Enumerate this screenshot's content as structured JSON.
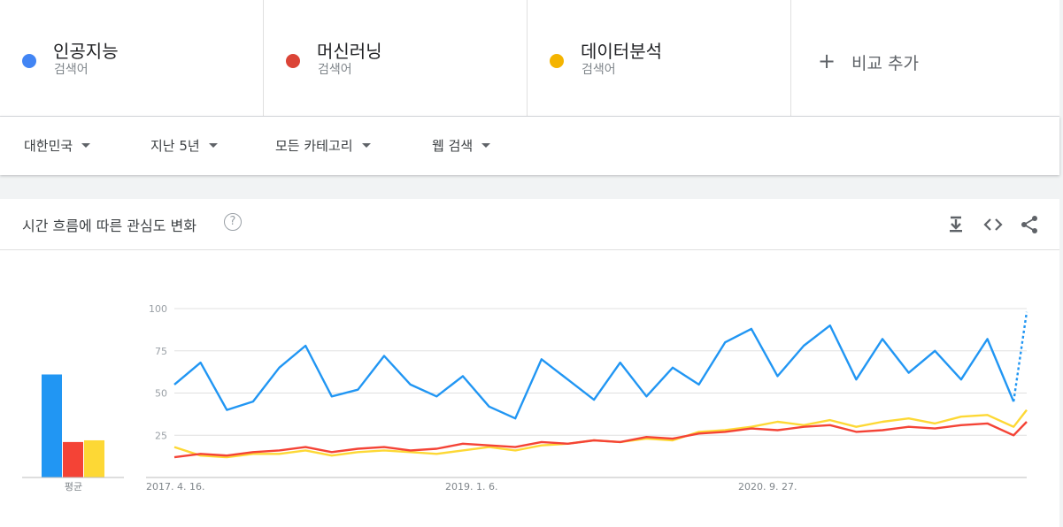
{
  "terms": [
    {
      "name": "인공지능",
      "sub": "검색어",
      "color": "#4285f4"
    },
    {
      "name": "머신러닝",
      "sub": "검색어",
      "color": "#db4437"
    },
    {
      "name": "데이터분석",
      "sub": "검색어",
      "color": "#f4b400"
    }
  ],
  "add_term": {
    "plus": "+",
    "label": "비교 추가"
  },
  "filters": {
    "region": "대한민국",
    "period": "지난 5년",
    "category": "모든 카테고리",
    "search_type": "웹 검색"
  },
  "card": {
    "title": "시간 흐름에 따른 관심도 변화",
    "help": "?",
    "download_icon": "download-icon",
    "embed_icon": "embed-icon",
    "share_icon": "share-icon"
  },
  "chart_data": {
    "type": "line",
    "ylim": [
      0,
      100
    ],
    "yticks": [
      100,
      75,
      50,
      25
    ],
    "grid": true,
    "x_labels": [
      "2017. 4. 16.",
      "2019. 1. 6.",
      "2020. 9. 27."
    ],
    "x": [
      "2017-04-16",
      "2017-06-11",
      "2017-08-06",
      "2017-10-01",
      "2017-11-26",
      "2018-01-21",
      "2018-03-18",
      "2018-05-13",
      "2018-07-08",
      "2018-09-02",
      "2018-10-28",
      "2018-12-23",
      "2019-02-17",
      "2019-04-14",
      "2019-06-09",
      "2019-08-04",
      "2019-09-29",
      "2019-11-24",
      "2020-01-19",
      "2020-03-15",
      "2020-05-10",
      "2020-07-05",
      "2020-08-30",
      "2020-10-25",
      "2020-12-20",
      "2021-02-14",
      "2021-04-11",
      "2021-06-06",
      "2021-08-01",
      "2021-09-26",
      "2021-11-21",
      "2022-01-16",
      "2022-03-13",
      "2022-04-10"
    ],
    "series": [
      {
        "name": "인공지능",
        "color": "#2196f3",
        "partial_last_point": true,
        "values": [
          55,
          68,
          40,
          45,
          65,
          78,
          48,
          52,
          72,
          55,
          48,
          60,
          42,
          35,
          70,
          58,
          46,
          68,
          48,
          65,
          55,
          80,
          88,
          60,
          78,
          90,
          58,
          82,
          62,
          75,
          58,
          82,
          45,
          98
        ]
      },
      {
        "name": "머신러닝",
        "color": "#f44336",
        "values": [
          12,
          14,
          13,
          15,
          16,
          18,
          15,
          17,
          18,
          16,
          17,
          20,
          19,
          18,
          21,
          20,
          22,
          21,
          24,
          23,
          26,
          27,
          29,
          28,
          30,
          31,
          27,
          28,
          30,
          29,
          31,
          32,
          25,
          33
        ]
      },
      {
        "name": "데이터분석",
        "color": "#fdd835",
        "values": [
          18,
          13,
          12,
          14,
          14,
          16,
          13,
          15,
          16,
          15,
          14,
          16,
          18,
          16,
          19,
          20,
          22,
          21,
          23,
          22,
          27,
          28,
          30,
          33,
          31,
          34,
          30,
          33,
          35,
          32,
          36,
          37,
          30,
          40
        ]
      }
    ],
    "averages": {
      "label": "평균",
      "values": [
        61,
        21,
        22
      ]
    }
  }
}
